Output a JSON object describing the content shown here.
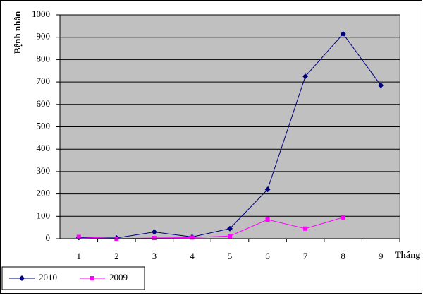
{
  "chart_data": {
    "type": "line",
    "y_label": "Bệnh nhân",
    "x_label": "Tháng",
    "categories": [
      "1",
      "2",
      "3",
      "4",
      "5",
      "6",
      "7",
      "8",
      "9"
    ],
    "series": [
      {
        "name": "2010",
        "color": "#000080",
        "marker": "diamond",
        "values": [
          5,
          3,
          30,
          8,
          45,
          220,
          725,
          915,
          685
        ]
      },
      {
        "name": "2009",
        "color": "#ff00ff",
        "marker": "square",
        "values": [
          8,
          0,
          3,
          5,
          12,
          85,
          45,
          95,
          null
        ]
      }
    ],
    "ylim": [
      0,
      1000
    ],
    "yticks": [
      0,
      100,
      200,
      300,
      400,
      500,
      600,
      700,
      800,
      900,
      1000
    ],
    "grid": true,
    "plot_background": "#c0c0c0",
    "legend": "bottom-left"
  }
}
